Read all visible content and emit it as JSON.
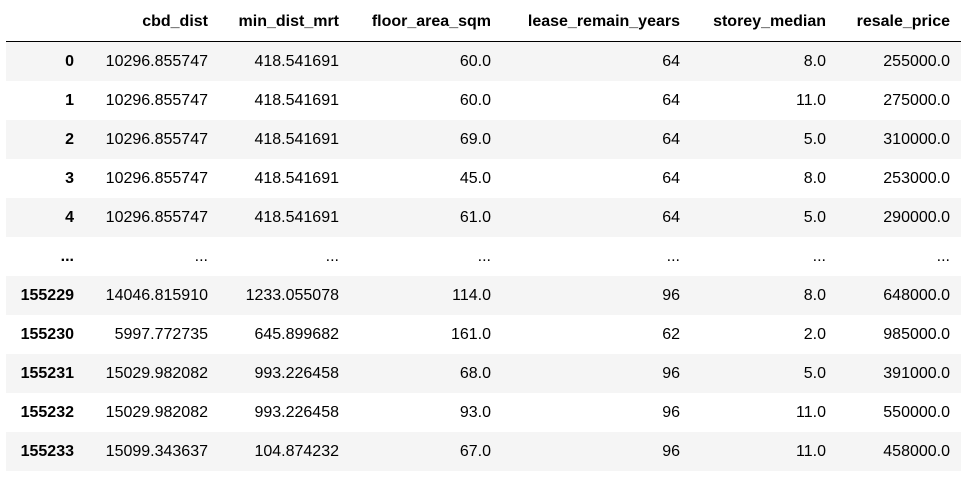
{
  "dataframe": {
    "columns": [
      "",
      "cbd_dist",
      "min_dist_mrt",
      "floor_area_sqm",
      "lease_remain_years",
      "storey_median",
      "resale_price"
    ],
    "rows": [
      {
        "index": "0",
        "cells": [
          "10296.855747",
          "418.541691",
          "60.0",
          "64",
          "8.0",
          "255000.0"
        ]
      },
      {
        "index": "1",
        "cells": [
          "10296.855747",
          "418.541691",
          "60.0",
          "64",
          "11.0",
          "275000.0"
        ]
      },
      {
        "index": "2",
        "cells": [
          "10296.855747",
          "418.541691",
          "69.0",
          "64",
          "5.0",
          "310000.0"
        ]
      },
      {
        "index": "3",
        "cells": [
          "10296.855747",
          "418.541691",
          "45.0",
          "64",
          "8.0",
          "253000.0"
        ]
      },
      {
        "index": "4",
        "cells": [
          "10296.855747",
          "418.541691",
          "61.0",
          "64",
          "5.0",
          "290000.0"
        ]
      },
      {
        "index": "...",
        "cells": [
          "...",
          "...",
          "...",
          "...",
          "...",
          "..."
        ]
      },
      {
        "index": "155229",
        "cells": [
          "14046.815910",
          "1233.055078",
          "114.0",
          "96",
          "8.0",
          "648000.0"
        ]
      },
      {
        "index": "155230",
        "cells": [
          "5997.772735",
          "645.899682",
          "161.0",
          "62",
          "2.0",
          "985000.0"
        ]
      },
      {
        "index": "155231",
        "cells": [
          "15029.982082",
          "993.226458",
          "68.0",
          "96",
          "5.0",
          "391000.0"
        ]
      },
      {
        "index": "155232",
        "cells": [
          "15029.982082",
          "993.226458",
          "93.0",
          "96",
          "11.0",
          "550000.0"
        ]
      },
      {
        "index": "155233",
        "cells": [
          "15099.343637",
          "104.874232",
          "67.0",
          "96",
          "11.0",
          "458000.0"
        ]
      }
    ]
  }
}
